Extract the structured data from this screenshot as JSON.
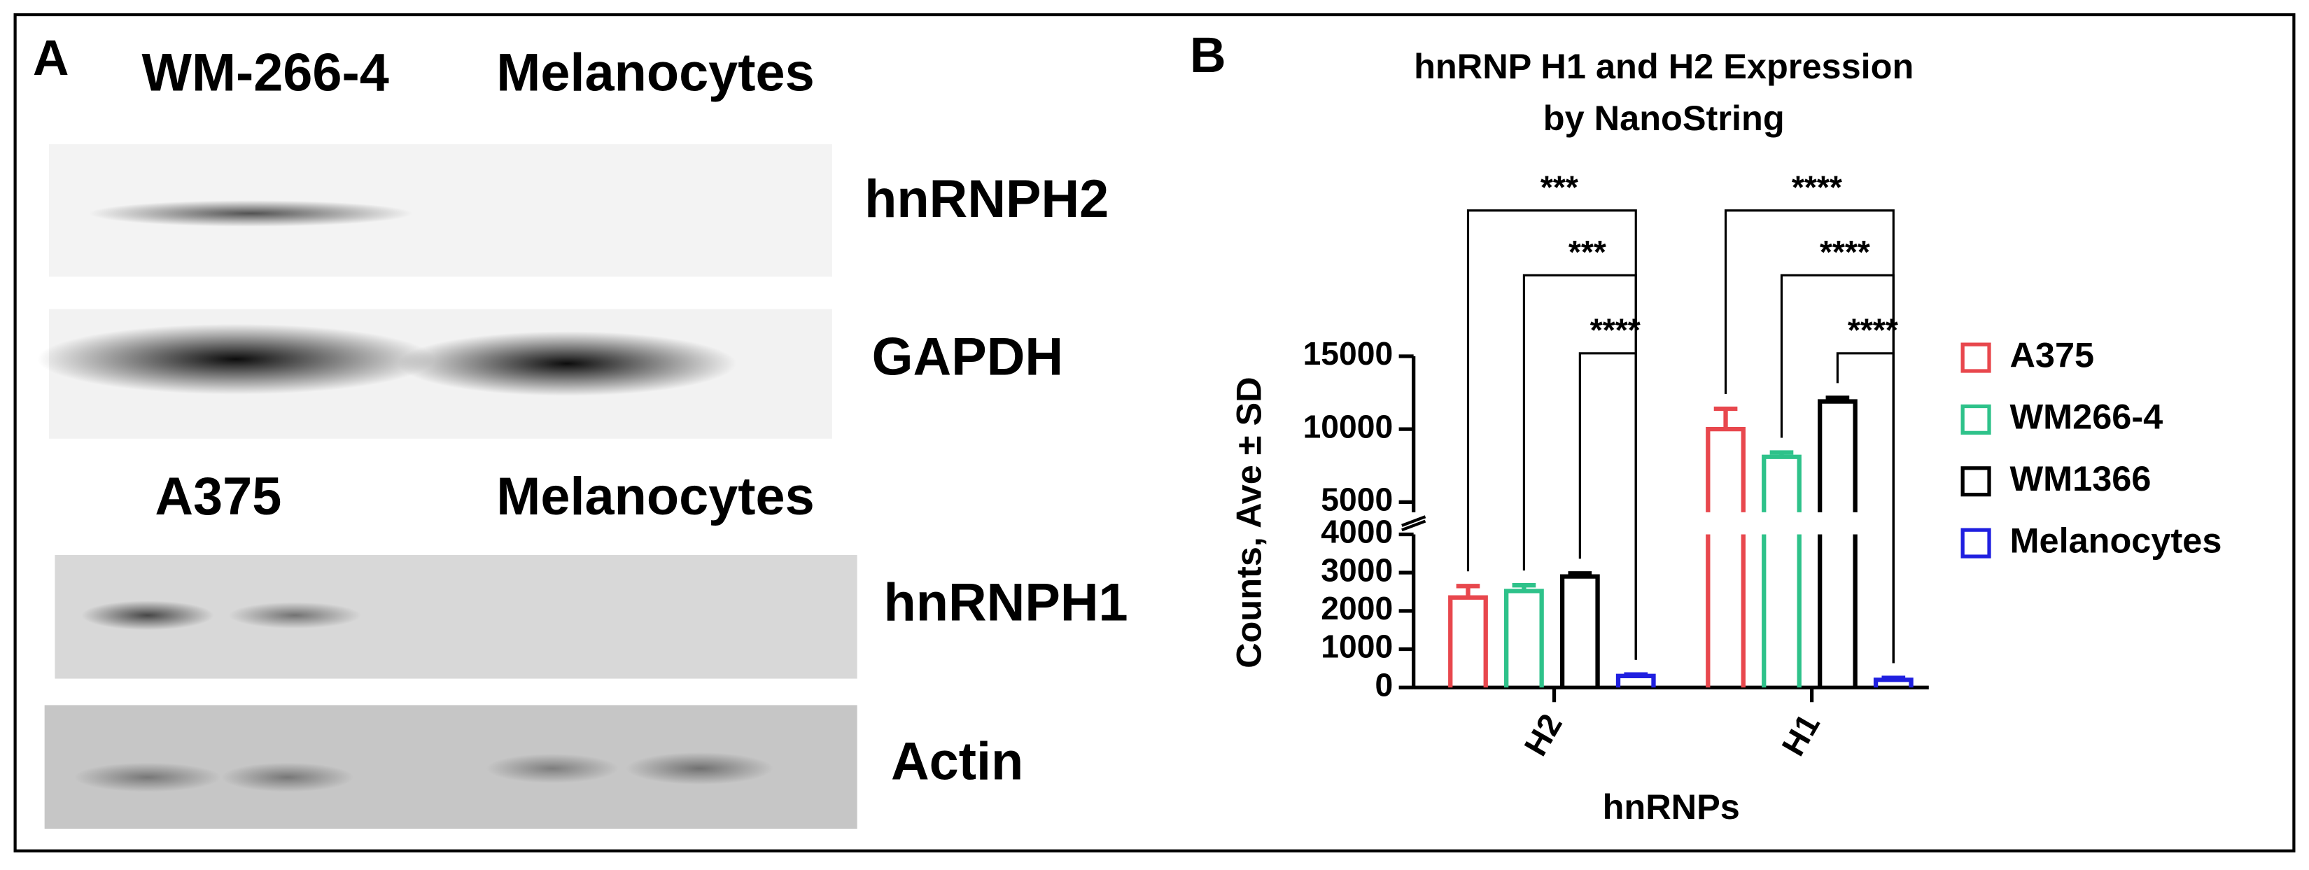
{
  "blot": {
    "panel_label": "A",
    "top_lanes": [
      "WM-266-4",
      "Melanocytes"
    ],
    "top_bands": [
      "hnRNPH2",
      "GAPDH"
    ],
    "bottom_lanes": [
      "A375",
      "Melanocytes"
    ],
    "bottom_bands": [
      "hnRNPH1",
      "Actin"
    ]
  },
  "chart_data": {
    "type": "bar",
    "panel_label": "B",
    "title": [
      "hnRNP H1 and H2 Expression",
      "by  NanoString"
    ],
    "ylabel": "Counts,  Ave ± SD",
    "xlabel": "hnRNPs",
    "categories": [
      "H2",
      "H1"
    ],
    "series": [
      {
        "name": "A375",
        "color": "#e8474d",
        "values": [
          2350,
          10000
        ],
        "errors": [
          300,
          1400
        ]
      },
      {
        "name": "WM266-4",
        "color": "#2ec28a",
        "values": [
          2520,
          8100
        ],
        "errors": [
          150,
          300
        ]
      },
      {
        "name": "WM1366",
        "color": "#000000",
        "values": [
          2900,
          11900
        ],
        "errors": [
          80,
          250
        ]
      },
      {
        "name": "Melanocytes",
        "color": "#1f1fe0",
        "values": [
          300,
          200
        ],
        "errors": [
          40,
          50
        ]
      }
    ],
    "ylim": [
      [
        0,
        4000
      ],
      [
        4300,
        15000
      ]
    ],
    "yticks": [
      [
        0,
        1000,
        2000,
        3000,
        4000
      ],
      [
        5000,
        10000,
        15000
      ]
    ],
    "legend": "right",
    "annotations": [
      {
        "category": "H2",
        "from": "A375",
        "to": "Melanocytes",
        "label": "***"
      },
      {
        "category": "H2",
        "from": "WM266-4",
        "to": "Melanocytes",
        "label": "***"
      },
      {
        "category": "H2",
        "from": "WM1366",
        "to": "Melanocytes",
        "label": "****"
      },
      {
        "category": "H1",
        "from": "A375",
        "to": "Melanocytes",
        "label": "****"
      },
      {
        "category": "H1",
        "from": "WM266-4",
        "to": "Melanocytes",
        "label": "****"
      },
      {
        "category": "H1",
        "from": "WM1366",
        "to": "Melanocytes",
        "label": "****"
      }
    ]
  }
}
